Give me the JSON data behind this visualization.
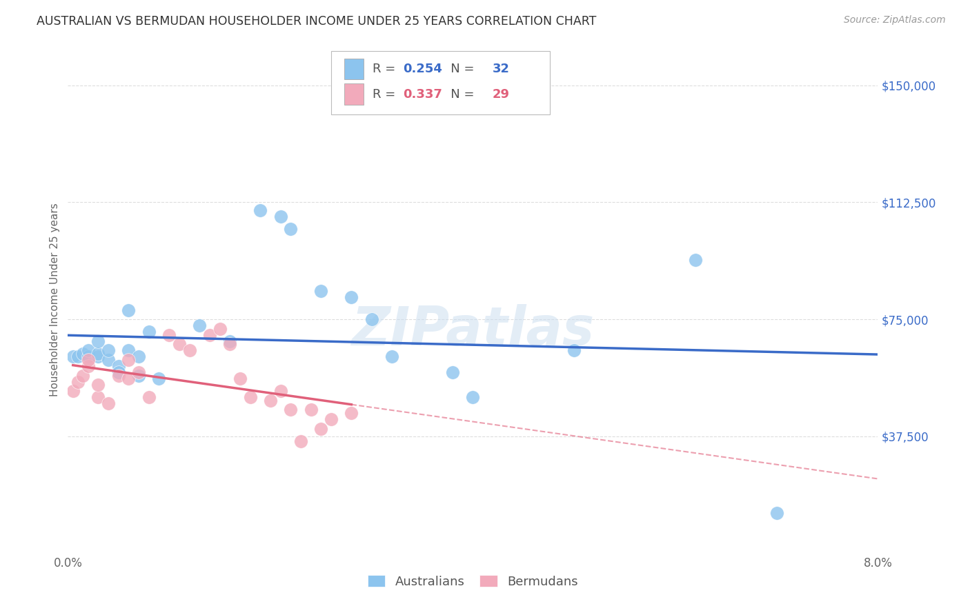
{
  "title": "AUSTRALIAN VS BERMUDAN HOUSEHOLDER INCOME UNDER 25 YEARS CORRELATION CHART",
  "source": "Source: ZipAtlas.com",
  "ylabel": "Householder Income Under 25 years",
  "xlim": [
    0.0,
    0.08
  ],
  "ylim": [
    0,
    162500
  ],
  "yticks": [
    37500,
    75000,
    112500,
    150000
  ],
  "ytick_labels": [
    "$37,500",
    "$75,000",
    "$112,500",
    "$150,000"
  ],
  "xticks": [
    0.0,
    0.01,
    0.02,
    0.03,
    0.04,
    0.05,
    0.06,
    0.07,
    0.08
  ],
  "xtick_labels": [
    "0.0%",
    "",
    "",
    "",
    "",
    "",
    "",
    "",
    "8.0%"
  ],
  "watermark": "ZIPatlas",
  "legend_au_R": "0.254",
  "legend_au_N": "32",
  "legend_bm_R": "0.337",
  "legend_bm_N": "29",
  "au_color": "#8CC4EE",
  "bm_color": "#F2AABB",
  "au_line_color": "#3A6BC8",
  "bm_line_color": "#E0607A",
  "grid_color": "#DDDDDD",
  "background_color": "#FFFFFF",
  "au_x": [
    0.0005,
    0.001,
    0.0015,
    0.002,
    0.002,
    0.003,
    0.003,
    0.003,
    0.004,
    0.004,
    0.005,
    0.005,
    0.006,
    0.006,
    0.007,
    0.007,
    0.008,
    0.009,
    0.013,
    0.016,
    0.019,
    0.021,
    0.022,
    0.025,
    0.028,
    0.03,
    0.032,
    0.038,
    0.04,
    0.05,
    0.062,
    0.07
  ],
  "au_y": [
    63000,
    63000,
    64000,
    63000,
    65000,
    63000,
    64000,
    68000,
    62000,
    65000,
    60000,
    58000,
    78000,
    65000,
    63000,
    57000,
    71000,
    56000,
    73000,
    68000,
    110000,
    108000,
    104000,
    84000,
    82000,
    75000,
    63000,
    58000,
    50000,
    65000,
    94000,
    13000
  ],
  "bm_x": [
    0.0005,
    0.001,
    0.0015,
    0.002,
    0.002,
    0.003,
    0.003,
    0.004,
    0.005,
    0.006,
    0.006,
    0.007,
    0.008,
    0.01,
    0.011,
    0.012,
    0.014,
    0.015,
    0.016,
    0.017,
    0.018,
    0.02,
    0.021,
    0.022,
    0.023,
    0.024,
    0.025,
    0.026,
    0.028
  ],
  "bm_y": [
    52000,
    55000,
    57000,
    60000,
    62000,
    50000,
    54000,
    48000,
    57000,
    56000,
    62000,
    58000,
    50000,
    70000,
    67000,
    65000,
    70000,
    72000,
    67000,
    56000,
    50000,
    49000,
    52000,
    46000,
    36000,
    46000,
    40000,
    43000,
    45000
  ]
}
